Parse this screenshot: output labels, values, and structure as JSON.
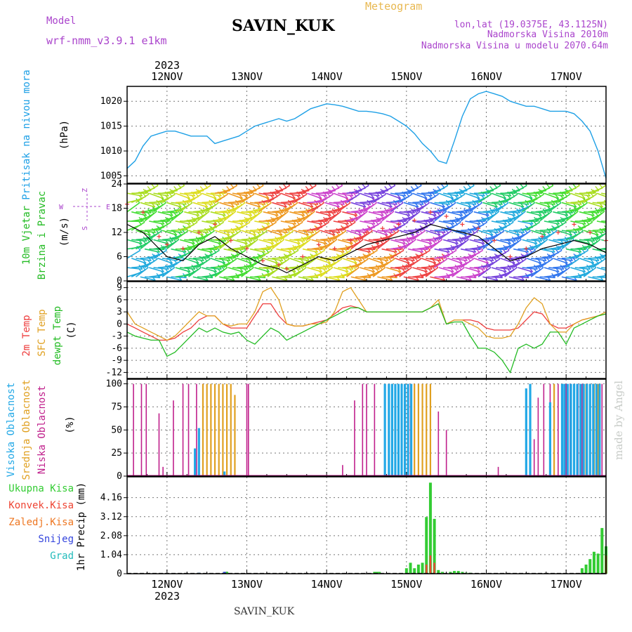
{
  "header": {
    "model_label": "Model",
    "model_name": "wrf-nmm_v3.9.1 e1km",
    "station": "SAVIN_KUK",
    "title": "Meteogram",
    "lonlat": "lon,lat (19.0375E, 43.1125N)",
    "elevation": "Nadmorska Visina 2010m",
    "model_elevation": "Nadmorska Visina u modelu 2070.64m",
    "year": "2023",
    "footer_station": "SAVIN_KUK",
    "watermark": "made by Angel"
  },
  "colors": {
    "pressure": "#1ea0e6",
    "temp2m": "#ee3c3c",
    "sfc_temp": "#e0a020",
    "dewpoint": "#22bb22",
    "high_cloud": "#22a8e6",
    "mid_cloud": "#e0a020",
    "low_cloud": "#c0208c",
    "total_precip": "#33cc33",
    "conv_precip": "#ee4433",
    "frozen_precip": "#ee7722",
    "snow": "#3344dd",
    "graupel": "#22bbbb",
    "model": "#aa44cc",
    "title": "#e8b850",
    "grid": "#666666"
  },
  "chart_data": [
    {
      "type": "line",
      "id": "pressure",
      "ylabel": [
        "Pritisak na nivou mora",
        "(hPa)"
      ],
      "yticks": [
        1005,
        1010,
        1015,
        1020
      ],
      "ylim": [
        1003.5,
        1023
      ],
      "x_dates": [
        "12NOV",
        "13NOV",
        "14NOV",
        "15NOV",
        "16NOV",
        "17NOV"
      ],
      "xlim_days": [
        -0.5,
        5.5
      ],
      "series": [
        {
          "color": "pressure",
          "x": [
            -0.5,
            -0.4,
            -0.3,
            -0.2,
            -0.1,
            0.0,
            0.1,
            0.2,
            0.3,
            0.4,
            0.5,
            0.6,
            0.7,
            0.8,
            0.9,
            1.0,
            1.1,
            1.2,
            1.3,
            1.4,
            1.5,
            1.6,
            1.7,
            1.8,
            1.9,
            2.0,
            2.1,
            2.2,
            2.3,
            2.4,
            2.5,
            2.6,
            2.7,
            2.8,
            2.9,
            3.0,
            3.1,
            3.2,
            3.3,
            3.4,
            3.5,
            3.6,
            3.7,
            3.8,
            3.9,
            4.0,
            4.1,
            4.2,
            4.3,
            4.4,
            4.5,
            4.6,
            4.7,
            4.8,
            4.9,
            5.0,
            5.1,
            5.2,
            5.3,
            5.4,
            5.5
          ],
          "y": [
            1006.5,
            1008,
            1011,
            1013,
            1013.5,
            1014,
            1014,
            1013.5,
            1013,
            1013,
            1013,
            1011.5,
            1012,
            1012.5,
            1013,
            1014,
            1015,
            1015.5,
            1016,
            1016.5,
            1016,
            1016.5,
            1017.5,
            1018.5,
            1019,
            1019.5,
            1019.3,
            1019,
            1018.5,
            1018,
            1018,
            1017.8,
            1017.5,
            1017,
            1016,
            1015,
            1013.5,
            1011.5,
            1010,
            1008,
            1007.5,
            1012,
            1017,
            1020.5,
            1021.5,
            1022,
            1021.5,
            1021,
            1020,
            1019.5,
            1019,
            1019,
            1018.5,
            1018,
            1018,
            1018,
            1017.5,
            1016,
            1014,
            1010,
            1004.5
          ]
        }
      ]
    },
    {
      "type": "scatter",
      "id": "wind",
      "ylabel": [
        "10m Vjetar",
        "Brzina i Pravac",
        "(m/s)"
      ],
      "compass": [
        "Z",
        "W",
        "S",
        "E",
        "J"
      ],
      "yticks": [
        0,
        6,
        12,
        18,
        24
      ],
      "ylim": [
        0,
        24
      ],
      "series": [
        {
          "name": "speed",
          "color": "#000000",
          "x": [
            -0.5,
            -0.3,
            -0.1,
            0.0,
            0.2,
            0.4,
            0.6,
            0.8,
            1.0,
            1.2,
            1.4,
            1.5,
            1.7,
            1.9,
            2.1,
            2.3,
            2.5,
            2.7,
            2.9,
            3.1,
            3.3,
            3.5,
            3.7,
            3.9,
            4.1,
            4.3,
            4.5,
            4.7,
            4.9,
            5.1,
            5.3,
            5.5
          ],
          "y": [
            14,
            12,
            8,
            6,
            5,
            9,
            11,
            8,
            6,
            4,
            3,
            2,
            4,
            6,
            5,
            7,
            9,
            10,
            11,
            12,
            14,
            13,
            12,
            11,
            8,
            5,
            6,
            8,
            9,
            10,
            9,
            7
          ]
        },
        {
          "name": "gust",
          "color": "temp2m",
          "x": [
            -0.5,
            -0.3,
            -0.1,
            0.0,
            0.2,
            0.4,
            0.6,
            0.8,
            1.0,
            1.2,
            1.4,
            1.5,
            1.7,
            1.9,
            2.1,
            2.3,
            2.5,
            2.7,
            2.9,
            3.1,
            3.3,
            3.5,
            3.7,
            3.9,
            4.1,
            4.3,
            4.5,
            4.7,
            4.9,
            5.1,
            5.3,
            5.5
          ],
          "y": [
            19,
            17,
            11,
            9,
            8,
            12,
            14,
            10,
            8,
            5,
            4,
            3,
            6,
            9,
            8,
            10,
            12,
            13,
            14,
            15,
            17,
            16,
            14,
            13,
            10,
            6,
            8,
            11,
            12,
            14,
            12,
            10
          ]
        }
      ]
    },
    {
      "type": "line",
      "id": "temperature",
      "ylabel": [
        "2m Temp",
        "SFC Temp",
        "dewpt Temp",
        "(C)"
      ],
      "yticks": [
        -12,
        -9,
        -6,
        -3,
        0,
        3,
        6,
        9
      ],
      "ylim": [
        -13.5,
        10.5
      ],
      "series": [
        {
          "name": "2m Temp",
          "color": "temp2m",
          "x": [
            -0.5,
            -0.4,
            -0.3,
            -0.2,
            -0.1,
            0.0,
            0.1,
            0.2,
            0.3,
            0.4,
            0.5,
            0.6,
            0.7,
            0.8,
            0.9,
            1.0,
            1.1,
            1.2,
            1.3,
            1.4,
            1.5,
            1.6,
            1.7,
            1.8,
            1.9,
            2.0,
            2.1,
            2.2,
            2.3,
            2.4,
            2.5,
            2.6,
            2.7,
            2.8,
            2.9,
            3.0,
            3.1,
            3.2,
            3.3,
            3.4,
            3.5,
            3.6,
            3.7,
            3.8,
            3.9,
            4.0,
            4.1,
            4.2,
            4.3,
            4.4,
            4.5,
            4.6,
            4.7,
            4.8,
            4.9,
            5.0,
            5.1,
            5.2,
            5.3,
            5.4,
            5.5
          ],
          "y": [
            0,
            -1,
            -2,
            -3,
            -4,
            -4,
            -3.5,
            -2,
            -1,
            1,
            2,
            2,
            0,
            -1,
            -1,
            -1,
            2,
            5,
            5,
            2,
            0,
            -0.5,
            -0.5,
            0,
            0.5,
            1,
            2.5,
            4,
            4.5,
            4,
            3,
            3,
            3,
            3,
            3,
            3,
            3,
            3,
            4,
            5,
            0,
            1,
            1,
            1,
            0.5,
            -1,
            -1.5,
            -1.5,
            -1.5,
            -1,
            1,
            3,
            2.5,
            0,
            -1,
            -1,
            0,
            1,
            1.5,
            2,
            2.5
          ]
        },
        {
          "name": "SFC Temp",
          "color": "sfc_temp",
          "x": [
            -0.5,
            -0.4,
            -0.3,
            -0.2,
            -0.1,
            0.0,
            0.1,
            0.2,
            0.3,
            0.4,
            0.5,
            0.6,
            0.7,
            0.8,
            0.9,
            1.0,
            1.1,
            1.2,
            1.3,
            1.4,
            1.5,
            1.6,
            1.7,
            1.8,
            1.9,
            2.0,
            2.1,
            2.2,
            2.3,
            2.4,
            2.5,
            2.6,
            2.7,
            2.8,
            2.9,
            3.0,
            3.1,
            3.2,
            3.3,
            3.4,
            3.5,
            3.6,
            3.7,
            3.8,
            3.9,
            4.0,
            4.1,
            4.2,
            4.3,
            4.4,
            4.5,
            4.6,
            4.7,
            4.8,
            4.9,
            5.0,
            5.1,
            5.2,
            5.3,
            5.4,
            5.5
          ],
          "y": [
            3,
            0,
            -1,
            -2,
            -3,
            -4,
            -3,
            -1,
            1,
            3,
            2,
            2,
            0,
            -0.5,
            0,
            0,
            3,
            8,
            9,
            6,
            0,
            -0.5,
            -0.5,
            0,
            0,
            0.5,
            3,
            8,
            9,
            6,
            3,
            3,
            3,
            3,
            3,
            3,
            3,
            3,
            4,
            6,
            0,
            1,
            1,
            0,
            -1,
            -3,
            -3.5,
            -3.5,
            -3,
            0,
            4,
            6.5,
            5,
            0,
            -2,
            -2,
            0,
            1,
            1.5,
            2,
            3
          ]
        },
        {
          "name": "dewpt Temp",
          "color": "dewpoint",
          "x": [
            -0.5,
            -0.4,
            -0.3,
            -0.2,
            -0.1,
            0.0,
            0.1,
            0.2,
            0.3,
            0.4,
            0.5,
            0.6,
            0.7,
            0.8,
            0.9,
            1.0,
            1.1,
            1.2,
            1.3,
            1.4,
            1.5,
            1.6,
            1.7,
            1.8,
            1.9,
            2.0,
            2.1,
            2.2,
            2.3,
            2.4,
            2.5,
            2.6,
            2.7,
            2.8,
            2.9,
            3.0,
            3.1,
            3.2,
            3.3,
            3.4,
            3.5,
            3.6,
            3.7,
            3.8,
            3.9,
            4.0,
            4.1,
            4.2,
            4.3,
            4.4,
            4.5,
            4.6,
            4.7,
            4.8,
            4.9,
            5.0,
            5.1,
            5.2,
            5.3,
            5.4,
            5.5
          ],
          "y": [
            -2,
            -3,
            -3.5,
            -4,
            -4,
            -8,
            -7,
            -5,
            -3,
            -1,
            -2,
            -1,
            -2,
            -2.5,
            -2,
            -4,
            -5,
            -3,
            -1,
            -2,
            -4,
            -3,
            -2,
            -1,
            0,
            1,
            2,
            3,
            4,
            4,
            3,
            3,
            3,
            3,
            3,
            3,
            3,
            3,
            4,
            5,
            0,
            0.5,
            0.5,
            -3,
            -6,
            -6,
            -7,
            -9,
            -12,
            -6,
            -5,
            -6,
            -5,
            -2,
            -2,
            -5,
            -1,
            0,
            1,
            2,
            2.5
          ]
        }
      ]
    },
    {
      "type": "bar",
      "id": "clouds",
      "ylabel": [
        "Visoka Oblacnost",
        "Srednja Oblacnost",
        "Niska Oblacnost",
        "(%)"
      ],
      "yticks": [
        0,
        25,
        50,
        75,
        100
      ],
      "ylim": [
        0,
        105
      ],
      "series": [
        {
          "name": "Niska Oblacnost",
          "color": "low_cloud",
          "x": [
            -0.42,
            -0.32,
            -0.26,
            -0.1,
            -0.05,
            0.08,
            0.2,
            0.27,
            0.37,
            0.45,
            1.0,
            1.02,
            2.2,
            2.35,
            2.45,
            2.5,
            2.6,
            3.05,
            3.1,
            3.15,
            3.3,
            3.4,
            3.5,
            4.15,
            4.6,
            4.65,
            4.72,
            4.8,
            4.9,
            5.0,
            5.05,
            5.1,
            5.15,
            5.2,
            5.25,
            5.3,
            5.35,
            5.4,
            5.45
          ],
          "y": [
            100,
            100,
            100,
            68,
            10,
            82,
            100,
            100,
            100,
            100,
            100,
            100,
            12,
            82,
            100,
            100,
            100,
            100,
            100,
            100,
            78,
            70,
            50,
            10,
            40,
            85,
            100,
            100,
            100,
            100,
            100,
            100,
            100,
            100,
            100,
            100,
            100,
            100,
            100
          ]
        },
        {
          "name": "Srednja Oblacnost",
          "color": "mid_cloud",
          "x": [
            0.45,
            0.5,
            0.55,
            0.6,
            0.65,
            0.7,
            0.75,
            0.8,
            0.85,
            3.1,
            3.15,
            3.2,
            3.25,
            3.3,
            4.85,
            5.25,
            5.3,
            5.35,
            5.4
          ],
          "y": [
            100,
            100,
            100,
            100,
            100,
            100,
            100,
            100,
            88,
            100,
            100,
            100,
            100,
            100,
            100,
            100,
            100,
            100,
            100
          ]
        },
        {
          "name": "Visoka Oblacnost",
          "color": "high_cloud",
          "x": [
            0.35,
            0.4,
            0.72,
            2.73,
            2.78,
            2.82,
            2.86,
            2.9,
            2.94,
            2.98,
            3.02,
            3.06,
            4.5,
            4.55,
            4.8,
            4.95,
            4.98,
            5.02,
            5.06,
            5.1,
            5.14,
            5.18,
            5.22,
            5.26,
            5.3,
            5.34,
            5.38,
            5.42
          ],
          "y": [
            30,
            52,
            5,
            100,
            100,
            100,
            100,
            100,
            100,
            100,
            100,
            100,
            95,
            100,
            80,
            100,
            100,
            100,
            100,
            100,
            100,
            100,
            100,
            100,
            100,
            100,
            100,
            100
          ]
        }
      ]
    },
    {
      "type": "bar",
      "id": "precip",
      "ylabel": [
        "1hr Precip (mm)"
      ],
      "legend": [
        "Ukupna Kisa",
        "Konvek.Kisa",
        "Zaledj.Kisa",
        "Snijeg",
        "Grad"
      ],
      "yticks": [
        0,
        1.04,
        2.08,
        3.12,
        4.16
      ],
      "ylim": [
        0,
        5.3
      ],
      "series": [
        {
          "name": "Ukupna Kisa",
          "color": "total_precip",
          "x": [
            0.4,
            0.72,
            0.75,
            2.6,
            2.63,
            2.66,
            3.0,
            3.05,
            3.1,
            3.15,
            3.2,
            3.25,
            3.3,
            3.35,
            3.4,
            3.45,
            3.55,
            3.6,
            3.65,
            3.7,
            3.75,
            3.8,
            5.2,
            5.25,
            5.3,
            5.35,
            5.4,
            5.45,
            5.5
          ],
          "y": [
            0.05,
            0.1,
            0.1,
            0.1,
            0.1,
            0.1,
            0.3,
            0.6,
            0.3,
            0.5,
            0.6,
            3.1,
            4.98,
            3.0,
            0.2,
            0.1,
            0.1,
            0.15,
            0.15,
            0.1,
            0.05,
            0.05,
            0.3,
            0.5,
            0.8,
            1.2,
            1.1,
            2.5,
            1.5
          ]
        },
        {
          "name": "Konvek.Kisa",
          "color": "conv_precip",
          "x": [
            3.25,
            3.3,
            3.35,
            5.5
          ],
          "y": [
            0.5,
            1.0,
            0.6,
            1.0
          ]
        },
        {
          "name": "Snijeg",
          "color": "snow",
          "x": [
            0.4,
            0.72
          ],
          "y": [
            0.05,
            0.1
          ]
        }
      ]
    }
  ]
}
